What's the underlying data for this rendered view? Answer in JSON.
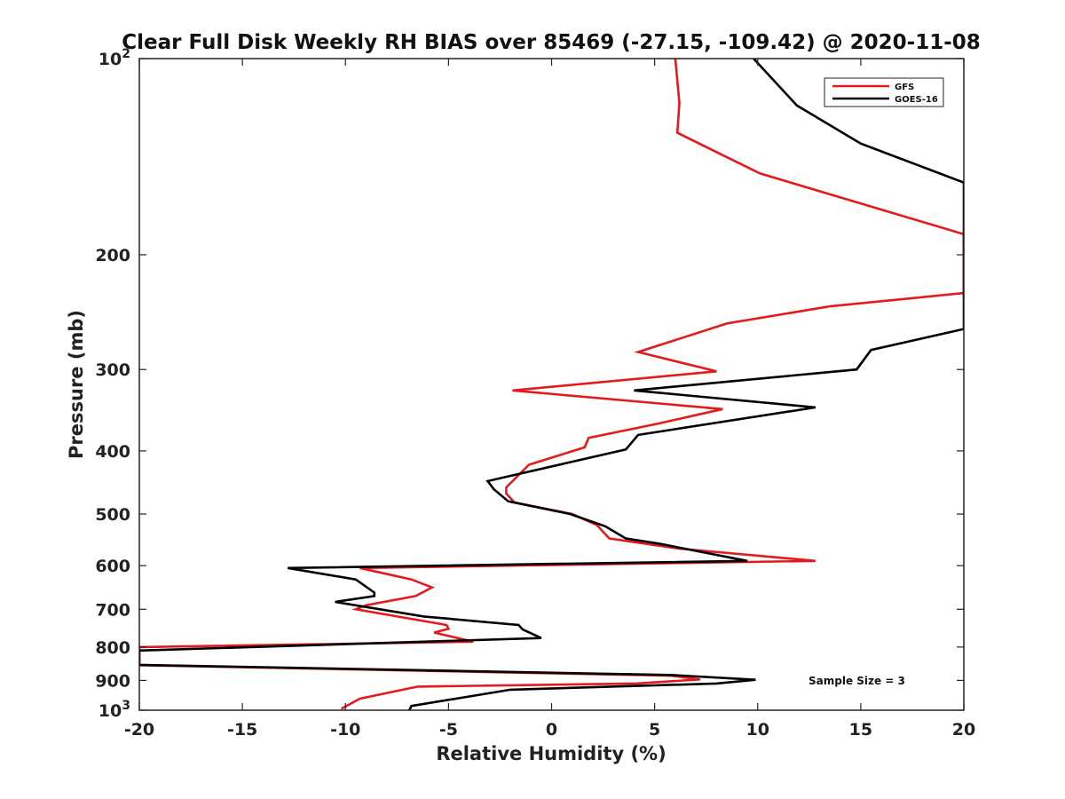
{
  "chart_data": {
    "type": "line",
    "title": "Clear Full Disk Weekly RH BIAS over 85469 (-27.15, -109.42) @ 2020-11-08",
    "xlabel": "Relative Humidity (%)",
    "ylabel": "Pressure (mb)",
    "xlim": [
      -20,
      20
    ],
    "ylim": [
      100,
      1000
    ],
    "yscale": "log",
    "y_reversed": true,
    "grid": false,
    "legend_position": "top-right",
    "x_ticks": [
      "-20",
      "-15",
      "-10",
      "-5",
      "0",
      "5",
      "10",
      "15",
      "20"
    ],
    "y_ticks": [
      {
        "value": 100,
        "base": "10",
        "exp": "2"
      },
      {
        "value": 200,
        "label": "200"
      },
      {
        "value": 300,
        "label": "300"
      },
      {
        "value": 400,
        "label": "400"
      },
      {
        "value": 500,
        "label": "500"
      },
      {
        "value": 600,
        "label": "600"
      },
      {
        "value": 700,
        "label": "700"
      },
      {
        "value": 800,
        "label": "800"
      },
      {
        "value": 900,
        "label": "900"
      },
      {
        "value": 1000,
        "base": "10",
        "exp": "3"
      }
    ],
    "annotation": "Sample Size = 3",
    "series": [
      {
        "name": "GFS",
        "color": "#e41a1c",
        "points": [
          [
            6.0,
            100
          ],
          [
            6.2,
            117
          ],
          [
            6.1,
            130
          ],
          [
            10.1,
            150
          ],
          [
            20,
            186
          ],
          [
            20,
            229
          ],
          [
            13.5,
            240
          ],
          [
            8.5,
            255
          ],
          [
            4.2,
            282
          ],
          [
            8.0,
            302
          ],
          [
            -1.9,
            323
          ],
          [
            8.3,
            345
          ],
          [
            5.2,
            363
          ],
          [
            1.8,
            382
          ],
          [
            1.6,
            395
          ],
          [
            -1.1,
            420
          ],
          [
            -2.2,
            455
          ],
          [
            -2.2,
            465
          ],
          [
            -1.8,
            480
          ],
          [
            1.0,
            500
          ],
          [
            2.2,
            520
          ],
          [
            2.8,
            545
          ],
          [
            6.2,
            565
          ],
          [
            12.8,
            590
          ],
          [
            -9.3,
            605
          ],
          [
            -6.8,
            630
          ],
          [
            -5.8,
            648
          ],
          [
            -6.6,
            668
          ],
          [
            -9.0,
            690
          ],
          [
            -9.5,
            700
          ],
          [
            -5.1,
            740
          ],
          [
            -5.0,
            750
          ],
          [
            -5.7,
            760
          ],
          [
            -3.8,
            785
          ],
          [
            -20,
            800
          ],
          [
            -20,
            853
          ],
          [
            5.8,
            885
          ],
          [
            7.2,
            897
          ],
          [
            4.1,
            910
          ],
          [
            -6.5,
            920
          ],
          [
            -9.3,
            960
          ],
          [
            -10.2,
            995
          ]
        ]
      },
      {
        "name": "GOES-16",
        "color": "#000000",
        "points": [
          [
            9.8,
            100
          ],
          [
            11.9,
            118
          ],
          [
            15.0,
            135
          ],
          [
            20,
            155
          ],
          [
            20,
            260
          ],
          [
            15.5,
            280
          ],
          [
            14.8,
            300
          ],
          [
            4.0,
            323
          ],
          [
            12.8,
            343
          ],
          [
            4.2,
            378
          ],
          [
            3.6,
            398
          ],
          [
            -3.1,
            445
          ],
          [
            -2.8,
            458
          ],
          [
            -2.1,
            478
          ],
          [
            0.9,
            500
          ],
          [
            2.6,
            522
          ],
          [
            3.6,
            545
          ],
          [
            5.2,
            555
          ],
          [
            9.5,
            590
          ],
          [
            -12.8,
            605
          ],
          [
            -9.5,
            630
          ],
          [
            -8.6,
            660
          ],
          [
            -8.6,
            668
          ],
          [
            -10.5,
            682
          ],
          [
            -6.2,
            718
          ],
          [
            -1.6,
            740
          ],
          [
            -1.4,
            752
          ],
          [
            -0.5,
            775
          ],
          [
            -20,
            810
          ],
          [
            -20,
            852
          ],
          [
            5.8,
            883
          ],
          [
            9.9,
            898
          ],
          [
            8.0,
            910
          ],
          [
            -2.0,
            930
          ],
          [
            -6.8,
            985
          ],
          [
            -6.9,
            1000
          ]
        ]
      }
    ]
  }
}
